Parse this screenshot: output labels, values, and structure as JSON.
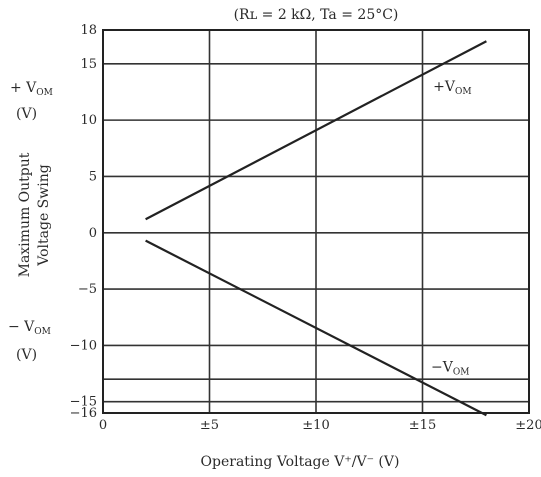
{
  "chart_data": {
    "type": "line",
    "title": "(Rʟ = 2 kΩ, Ta = 25°C)",
    "xlabel": "Operating Voltage   V⁺/V⁻ (V)",
    "ylabel_lines": [
      "Maximum Output",
      "Voltage Swing"
    ],
    "upper_unit_label": {
      "main": "+ V",
      "sub": "OM",
      "unit": "(V)"
    },
    "lower_unit_label": {
      "main": "− V",
      "sub": "OM",
      "unit": "(V)"
    },
    "xlim": [
      0,
      20
    ],
    "ylim": [
      -16,
      18
    ],
    "x_ticks": [
      {
        "value": 0,
        "label": "0"
      },
      {
        "value": 5,
        "label": "±5"
      },
      {
        "value": 10,
        "label": "±10"
      },
      {
        "value": 15,
        "label": "±15"
      },
      {
        "value": 20,
        "label": "±20"
      }
    ],
    "y_ticks": [
      {
        "value": 18,
        "label": "18"
      },
      {
        "value": 15,
        "label": "15"
      },
      {
        "value": 10,
        "label": "10"
      },
      {
        "value": 5,
        "label": "5"
      },
      {
        "value": 0,
        "label": "0"
      },
      {
        "value": -5,
        "label": "−5"
      },
      {
        "value": -10,
        "label": "−10"
      },
      {
        "value": -15,
        "label": "−15"
      },
      {
        "value": -16,
        "label": "−16"
      }
    ],
    "y_grid_extra": [
      -13
    ],
    "grid": true,
    "series": [
      {
        "name": "+V",
        "name_sub": "OM",
        "points": [
          [
            2,
            1.2
          ],
          [
            18,
            17
          ]
        ],
        "label_at": [
          15.5,
          12.6
        ],
        "color": "#222222"
      },
      {
        "name": "−V",
        "name_sub": "OM",
        "points": [
          [
            2,
            -0.7
          ],
          [
            18,
            -16.2
          ]
        ],
        "label_at": [
          15.4,
          -12.3
        ],
        "color": "#222222"
      }
    ]
  }
}
